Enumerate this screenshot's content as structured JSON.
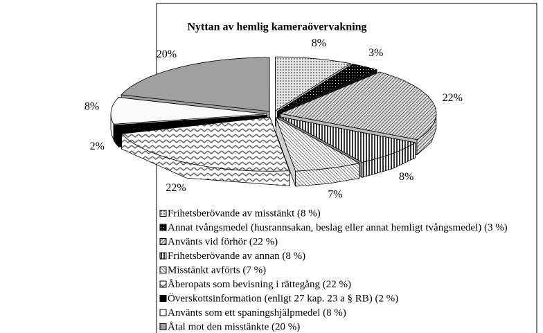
{
  "chart_data": {
    "type": "pie3d",
    "title": "Nyttan av hemlig kameraövervakning",
    "categories": [
      "Frihetsberövande av misstänkt (8 %)",
      "Annat tvångsmedel (husrannsakan, beslag eller annat hemligt tvångsmedel) (3 %)",
      "Använts vid förhör (22 %)",
      "Frihetsberövande av annan (8 %)",
      "Misstänkt avförts (7 %)",
      "Åberopats som bevisning i rättegång (22 %)",
      "Överskottsinformation (enligt 27 kap. 23 a § RB) (2 %)",
      "Använts som ett spaningshjälpmedel (8 %)",
      "Åtal mot den misstänkte (20 %)"
    ],
    "values": [
      8,
      3,
      22,
      8,
      7,
      22,
      2,
      8,
      20
    ],
    "value_labels": [
      "8%",
      "3%",
      "22%",
      "8%",
      "7%",
      "22%",
      "2%",
      "8%",
      "20%"
    ],
    "colors": [
      "#d8d8d8",
      "#111111",
      "#bdbdbd",
      "#8a8a8a",
      "#d0d0d0",
      "#a8a8a8",
      "#000000",
      "#f4f4f4",
      "#a0a0a0"
    ]
  }
}
